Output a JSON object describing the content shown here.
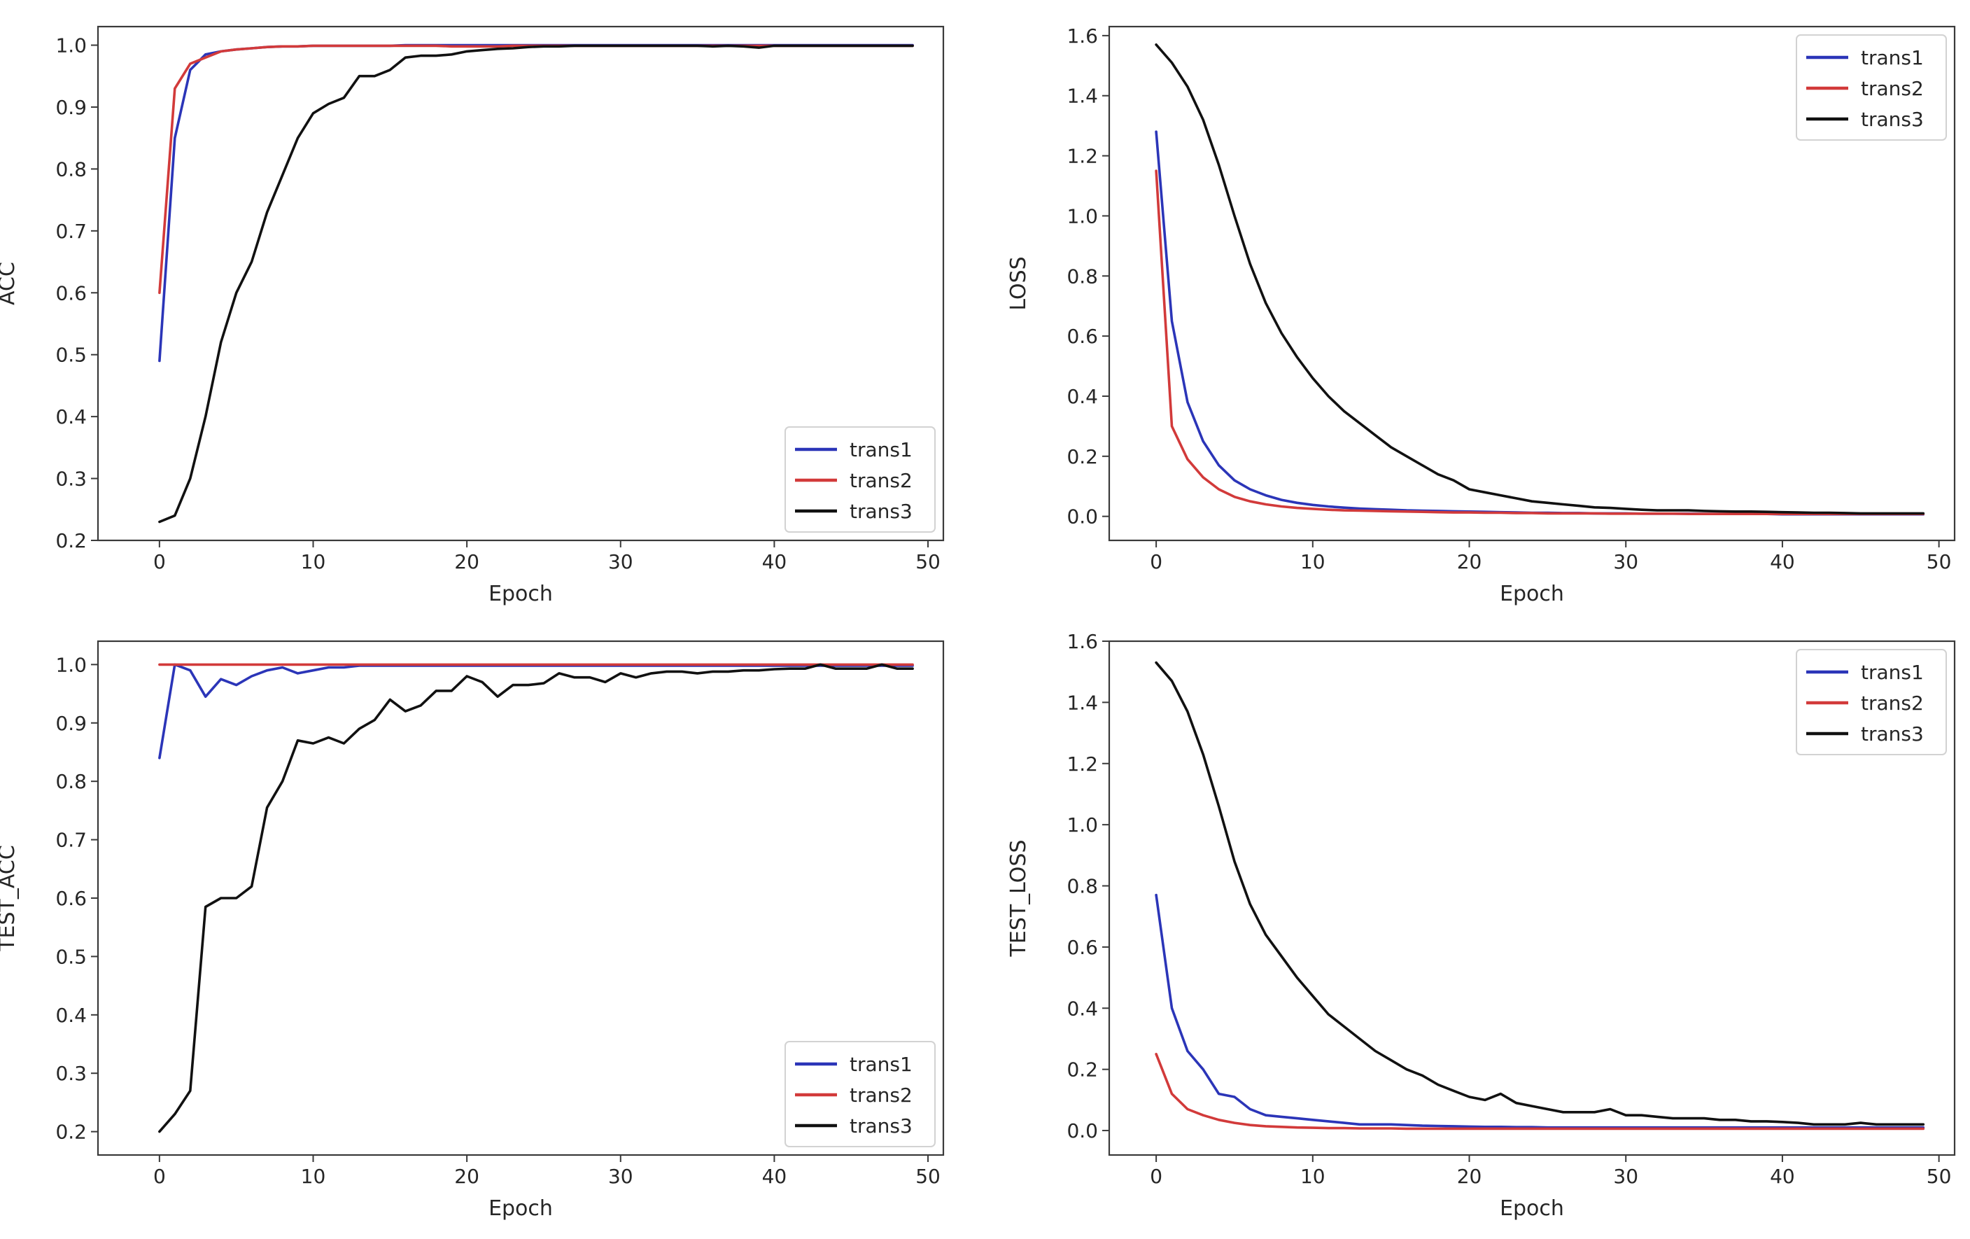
{
  "chart_data": [
    {
      "type": "line",
      "id": "acc",
      "xlabel": "Epoch",
      "ylabel": "ACC",
      "xlim": [
        -4,
        51
      ],
      "ylim": [
        0.2,
        1.03
      ],
      "xticks": [
        0,
        10,
        20,
        30,
        40,
        50
      ],
      "yticks": [
        0.2,
        0.3,
        0.4,
        0.5,
        0.6,
        0.7,
        0.8,
        0.9,
        1.0
      ],
      "ytick_decimals": 1,
      "legend_position": "lower-right",
      "x": [
        0,
        1,
        2,
        3,
        4,
        5,
        6,
        7,
        8,
        9,
        10,
        11,
        12,
        13,
        14,
        15,
        16,
        17,
        18,
        19,
        20,
        21,
        22,
        23,
        24,
        25,
        26,
        27,
        28,
        29,
        30,
        31,
        32,
        33,
        34,
        35,
        36,
        37,
        38,
        39,
        40,
        41,
        42,
        43,
        44,
        45,
        46,
        47,
        48,
        49
      ],
      "series": [
        {
          "name": "trans1",
          "color": "#2b35b8",
          "values": [
            0.49,
            0.85,
            0.96,
            0.985,
            0.99,
            0.993,
            0.995,
            0.997,
            0.998,
            0.998,
            0.999,
            0.999,
            0.999,
            0.999,
            0.999,
            0.999,
            1.0,
            1.0,
            1.0,
            1.0,
            1.0,
            1.0,
            1.0,
            1.0,
            1.0,
            1.0,
            1.0,
            1.0,
            1.0,
            1.0,
            1.0,
            1.0,
            1.0,
            1.0,
            1.0,
            1.0,
            1.0,
            1.0,
            1.0,
            1.0,
            1.0,
            1.0,
            1.0,
            1.0,
            1.0,
            1.0,
            1.0,
            1.0,
            1.0,
            1.0
          ]
        },
        {
          "name": "trans2",
          "color": "#d23a3a",
          "values": [
            0.6,
            0.93,
            0.97,
            0.98,
            0.99,
            0.993,
            0.995,
            0.997,
            0.998,
            0.998,
            0.999,
            0.999,
            0.999,
            0.999,
            0.999,
            0.999,
            0.999,
            0.999,
            0.999,
            0.998,
            0.998,
            0.998,
            0.998,
            0.999,
            0.999,
            0.999,
            0.999,
            0.999,
            0.999,
            0.999,
            0.999,
            0.999,
            0.999,
            0.999,
            0.999,
            0.999,
            0.999,
            0.999,
            0.999,
            0.999,
            0.999,
            0.999,
            0.999,
            0.999,
            0.999,
            0.999,
            0.999,
            0.999,
            0.999,
            0.999
          ]
        },
        {
          "name": "trans3",
          "color": "#111111",
          "values": [
            0.23,
            0.24,
            0.3,
            0.4,
            0.52,
            0.6,
            0.65,
            0.73,
            0.79,
            0.85,
            0.89,
            0.905,
            0.915,
            0.95,
            0.95,
            0.96,
            0.98,
            0.983,
            0.983,
            0.985,
            0.99,
            0.992,
            0.994,
            0.995,
            0.997,
            0.998,
            0.998,
            0.999,
            0.999,
            0.999,
            0.999,
            0.999,
            0.999,
            0.999,
            0.999,
            0.999,
            0.998,
            0.999,
            0.998,
            0.996,
            0.999,
            0.999,
            0.999,
            0.999,
            0.999,
            0.999,
            0.999,
            0.999,
            0.999,
            0.999
          ]
        }
      ]
    },
    {
      "type": "line",
      "id": "loss",
      "xlabel": "Epoch",
      "ylabel": "LOSS",
      "xlim": [
        -3,
        51
      ],
      "ylim": [
        -0.08,
        1.63
      ],
      "xticks": [
        0,
        10,
        20,
        30,
        40,
        50
      ],
      "yticks": [
        0.0,
        0.2,
        0.4,
        0.6,
        0.8,
        1.0,
        1.2,
        1.4,
        1.6
      ],
      "ytick_decimals": 1,
      "legend_position": "upper-right",
      "x": [
        0,
        1,
        2,
        3,
        4,
        5,
        6,
        7,
        8,
        9,
        10,
        11,
        12,
        13,
        14,
        15,
        16,
        17,
        18,
        19,
        20,
        21,
        22,
        23,
        24,
        25,
        26,
        27,
        28,
        29,
        30,
        31,
        32,
        33,
        34,
        35,
        36,
        37,
        38,
        39,
        40,
        41,
        42,
        43,
        44,
        45,
        46,
        47,
        48,
        49
      ],
      "series": [
        {
          "name": "trans1",
          "color": "#2b35b8",
          "values": [
            1.28,
            0.65,
            0.38,
            0.25,
            0.17,
            0.12,
            0.09,
            0.07,
            0.055,
            0.045,
            0.038,
            0.033,
            0.029,
            0.026,
            0.024,
            0.022,
            0.02,
            0.019,
            0.018,
            0.017,
            0.016,
            0.015,
            0.014,
            0.013,
            0.012,
            0.012,
            0.011,
            0.011,
            0.01,
            0.01,
            0.01,
            0.009,
            0.009,
            0.009,
            0.009,
            0.008,
            0.008,
            0.008,
            0.008,
            0.008,
            0.007,
            0.007,
            0.007,
            0.007,
            0.007,
            0.007,
            0.007,
            0.007,
            0.007,
            0.007
          ]
        },
        {
          "name": "trans2",
          "color": "#d23a3a",
          "values": [
            1.15,
            0.3,
            0.19,
            0.13,
            0.09,
            0.065,
            0.05,
            0.04,
            0.033,
            0.028,
            0.025,
            0.022,
            0.02,
            0.019,
            0.018,
            0.017,
            0.016,
            0.015,
            0.014,
            0.013,
            0.013,
            0.012,
            0.012,
            0.011,
            0.011,
            0.01,
            0.01,
            0.01,
            0.01,
            0.009,
            0.009,
            0.009,
            0.009,
            0.009,
            0.008,
            0.008,
            0.008,
            0.008,
            0.008,
            0.008,
            0.008,
            0.008,
            0.008,
            0.008,
            0.008,
            0.008,
            0.008,
            0.008,
            0.008,
            0.008
          ]
        },
        {
          "name": "trans3",
          "color": "#111111",
          "values": [
            1.57,
            1.51,
            1.43,
            1.32,
            1.17,
            1.0,
            0.84,
            0.71,
            0.61,
            0.53,
            0.46,
            0.4,
            0.35,
            0.31,
            0.27,
            0.23,
            0.2,
            0.17,
            0.14,
            0.12,
            0.09,
            0.08,
            0.07,
            0.06,
            0.05,
            0.045,
            0.04,
            0.035,
            0.03,
            0.028,
            0.025,
            0.022,
            0.02,
            0.02,
            0.02,
            0.018,
            0.017,
            0.016,
            0.016,
            0.015,
            0.014,
            0.013,
            0.012,
            0.012,
            0.011,
            0.01,
            0.01,
            0.01,
            0.01,
            0.01
          ]
        }
      ]
    },
    {
      "type": "line",
      "id": "test_acc",
      "xlabel": "Epoch",
      "ylabel": "TEST_ACC",
      "xlim": [
        -4,
        51
      ],
      "ylim": [
        0.16,
        1.04
      ],
      "xticks": [
        0,
        10,
        20,
        30,
        40,
        50
      ],
      "yticks": [
        0.2,
        0.3,
        0.4,
        0.5,
        0.6,
        0.7,
        0.8,
        0.9,
        1.0
      ],
      "ytick_decimals": 1,
      "legend_position": "lower-right",
      "x": [
        0,
        1,
        2,
        3,
        4,
        5,
        6,
        7,
        8,
        9,
        10,
        11,
        12,
        13,
        14,
        15,
        16,
        17,
        18,
        19,
        20,
        21,
        22,
        23,
        24,
        25,
        26,
        27,
        28,
        29,
        30,
        31,
        32,
        33,
        34,
        35,
        36,
        37,
        38,
        39,
        40,
        41,
        42,
        43,
        44,
        45,
        46,
        47,
        48,
        49
      ],
      "series": [
        {
          "name": "trans1",
          "color": "#2b35b8",
          "values": [
            0.84,
            1.0,
            0.99,
            0.945,
            0.975,
            0.965,
            0.98,
            0.99,
            0.995,
            0.985,
            0.99,
            0.995,
            0.995,
            0.998,
            0.998,
            0.998,
            0.998,
            0.998,
            0.998,
            0.998,
            0.998,
            0.998,
            0.998,
            0.998,
            0.998,
            0.998,
            0.998,
            0.998,
            0.998,
            0.998,
            0.998,
            0.998,
            0.998,
            0.998,
            0.998,
            0.998,
            0.998,
            0.998,
            0.998,
            0.998,
            0.998,
            0.998,
            0.998,
            0.998,
            0.998,
            0.998,
            0.998,
            0.998,
            0.998,
            0.998
          ]
        },
        {
          "name": "trans2",
          "color": "#d23a3a",
          "values": [
            1.0,
            1.0,
            1.0,
            1.0,
            1.0,
            1.0,
            1.0,
            1.0,
            1.0,
            1.0,
            1.0,
            1.0,
            1.0,
            1.0,
            1.0,
            1.0,
            1.0,
            1.0,
            1.0,
            1.0,
            1.0,
            1.0,
            1.0,
            1.0,
            1.0,
            1.0,
            1.0,
            1.0,
            1.0,
            1.0,
            1.0,
            1.0,
            1.0,
            1.0,
            1.0,
            1.0,
            1.0,
            1.0,
            1.0,
            1.0,
            1.0,
            1.0,
            1.0,
            1.0,
            1.0,
            1.0,
            1.0,
            1.0,
            1.0,
            1.0
          ]
        },
        {
          "name": "trans3",
          "color": "#111111",
          "values": [
            0.2,
            0.23,
            0.27,
            0.585,
            0.6,
            0.6,
            0.62,
            0.755,
            0.8,
            0.87,
            0.865,
            0.875,
            0.865,
            0.89,
            0.905,
            0.94,
            0.92,
            0.93,
            0.955,
            0.955,
            0.98,
            0.97,
            0.945,
            0.965,
            0.965,
            0.968,
            0.985,
            0.978,
            0.978,
            0.97,
            0.985,
            0.978,
            0.985,
            0.988,
            0.988,
            0.985,
            0.988,
            0.988,
            0.99,
            0.99,
            0.992,
            0.993,
            0.993,
            1.0,
            0.993,
            0.993,
            0.993,
            1.0,
            0.993,
            0.993
          ]
        }
      ]
    },
    {
      "type": "line",
      "id": "test_loss",
      "xlabel": "Epoch",
      "ylabel": "TEST_LOSS",
      "xlim": [
        -3,
        51
      ],
      "ylim": [
        -0.08,
        1.6
      ],
      "xticks": [
        0,
        10,
        20,
        30,
        40,
        50
      ],
      "yticks": [
        0.0,
        0.2,
        0.4,
        0.6,
        0.8,
        1.0,
        1.2,
        1.4,
        1.6
      ],
      "ytick_decimals": 1,
      "legend_position": "upper-right",
      "x": [
        0,
        1,
        2,
        3,
        4,
        5,
        6,
        7,
        8,
        9,
        10,
        11,
        12,
        13,
        14,
        15,
        16,
        17,
        18,
        19,
        20,
        21,
        22,
        23,
        24,
        25,
        26,
        27,
        28,
        29,
        30,
        31,
        32,
        33,
        34,
        35,
        36,
        37,
        38,
        39,
        40,
        41,
        42,
        43,
        44,
        45,
        46,
        47,
        48,
        49
      ],
      "series": [
        {
          "name": "trans1",
          "color": "#2b35b8",
          "values": [
            0.77,
            0.4,
            0.26,
            0.2,
            0.12,
            0.11,
            0.07,
            0.05,
            0.045,
            0.04,
            0.035,
            0.03,
            0.025,
            0.02,
            0.02,
            0.02,
            0.018,
            0.016,
            0.015,
            0.014,
            0.013,
            0.012,
            0.012,
            0.011,
            0.011,
            0.01,
            0.01,
            0.01,
            0.01,
            0.01,
            0.01,
            0.01,
            0.01,
            0.01,
            0.01,
            0.01,
            0.01,
            0.01,
            0.01,
            0.01,
            0.01,
            0.01,
            0.01,
            0.01,
            0.01,
            0.01,
            0.01,
            0.01,
            0.01,
            0.01
          ]
        },
        {
          "name": "trans2",
          "color": "#d23a3a",
          "values": [
            0.25,
            0.12,
            0.07,
            0.05,
            0.035,
            0.025,
            0.018,
            0.014,
            0.012,
            0.01,
            0.009,
            0.008,
            0.008,
            0.007,
            0.007,
            0.007,
            0.006,
            0.006,
            0.006,
            0.006,
            0.006,
            0.006,
            0.006,
            0.006,
            0.006,
            0.006,
            0.006,
            0.006,
            0.006,
            0.006,
            0.006,
            0.006,
            0.006,
            0.006,
            0.006,
            0.006,
            0.006,
            0.006,
            0.006,
            0.006,
            0.006,
            0.006,
            0.006,
            0.006,
            0.006,
            0.006,
            0.006,
            0.006,
            0.006,
            0.006
          ]
        },
        {
          "name": "trans3",
          "color": "#111111",
          "values": [
            1.53,
            1.47,
            1.37,
            1.23,
            1.06,
            0.88,
            0.74,
            0.64,
            0.57,
            0.5,
            0.44,
            0.38,
            0.34,
            0.3,
            0.26,
            0.23,
            0.2,
            0.18,
            0.15,
            0.13,
            0.11,
            0.1,
            0.12,
            0.09,
            0.08,
            0.07,
            0.06,
            0.06,
            0.06,
            0.07,
            0.05,
            0.05,
            0.045,
            0.04,
            0.04,
            0.04,
            0.035,
            0.035,
            0.03,
            0.03,
            0.028,
            0.025,
            0.02,
            0.02,
            0.02,
            0.025,
            0.02,
            0.02,
            0.02,
            0.02
          ]
        }
      ]
    }
  ]
}
